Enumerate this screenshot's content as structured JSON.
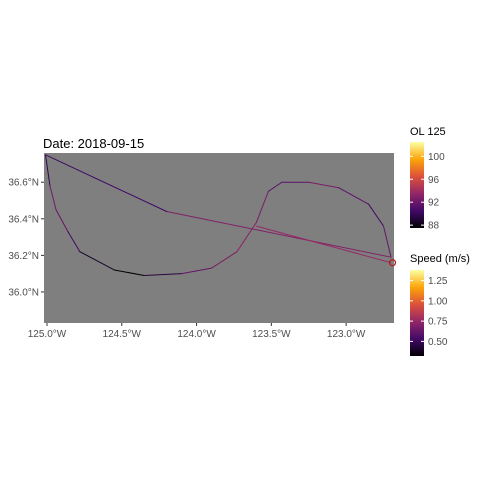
{
  "chart_data": {
    "type": "map-track",
    "title": "Date: 2018-09-15",
    "xlabel": "",
    "ylabel": "",
    "panel_background": "#7f7f7f",
    "lon_range": [
      -125.02,
      -122.68
    ],
    "lat_range": [
      35.83,
      36.76
    ],
    "x_ticks": [
      {
        "value": -125.0,
        "label": "125.0°W"
      },
      {
        "value": -124.5,
        "label": "124.5°W"
      },
      {
        "value": -124.0,
        "label": "124.0°W"
      },
      {
        "value": -123.5,
        "label": "123.5°W"
      },
      {
        "value": -123.0,
        "label": "123.0°W"
      }
    ],
    "y_ticks": [
      {
        "value": 36.0,
        "label": "36.0°N"
      },
      {
        "value": 36.2,
        "label": "36.2°N"
      },
      {
        "value": 36.4,
        "label": "36.4°N"
      },
      {
        "value": 36.6,
        "label": "36.6°N"
      }
    ],
    "track": [
      {
        "lon": -125.01,
        "lat": 36.75,
        "speed": 0.35
      },
      {
        "lon": -124.98,
        "lat": 36.58,
        "speed": 0.6
      },
      {
        "lon": -124.94,
        "lat": 36.45,
        "speed": 0.7
      },
      {
        "lon": -124.86,
        "lat": 36.33,
        "speed": 0.55
      },
      {
        "lon": -124.78,
        "lat": 36.22,
        "speed": 0.5
      },
      {
        "lon": -124.55,
        "lat": 36.12,
        "speed": 0.3
      },
      {
        "lon": -124.35,
        "lat": 36.09,
        "speed": 0.3
      },
      {
        "lon": -124.1,
        "lat": 36.1,
        "speed": 0.6
      },
      {
        "lon": -123.9,
        "lat": 36.13,
        "speed": 0.65
      },
      {
        "lon": -123.73,
        "lat": 36.22,
        "speed": 0.7
      },
      {
        "lon": -123.6,
        "lat": 36.38,
        "speed": 0.75
      },
      {
        "lon": -123.52,
        "lat": 36.55,
        "speed": 0.6
      },
      {
        "lon": -123.43,
        "lat": 36.6,
        "speed": 0.55
      },
      {
        "lon": -123.25,
        "lat": 36.6,
        "speed": 0.65
      },
      {
        "lon": -123.05,
        "lat": 36.57,
        "speed": 0.7
      },
      {
        "lon": -122.85,
        "lat": 36.48,
        "speed": 0.5
      },
      {
        "lon": -122.75,
        "lat": 36.36,
        "speed": 0.55
      },
      {
        "lon": -122.7,
        "lat": 36.19,
        "speed": 0.7
      },
      {
        "lon": -124.2,
        "lat": 36.44,
        "speed": 0.7
      },
      {
        "lon": -125.01,
        "lat": 36.75,
        "speed": 0.35
      }
    ],
    "extra_segments": [
      {
        "from": {
          "lon": -123.6,
          "lat": 36.36
        },
        "to": {
          "lon": -122.7,
          "lat": 36.16
        },
        "speed": 0.75
      }
    ],
    "endpoint_marker": {
      "lon": -122.69,
      "lat": 36.16,
      "color": "#b02020"
    },
    "legends": [
      {
        "title": "OL 125",
        "palette": [
          "#000004",
          "#420a68",
          "#932667",
          "#dd513a",
          "#fca50a",
          "#fcffa4"
        ],
        "range": [
          87.5,
          102.5
        ],
        "ticks": [
          {
            "value": 100,
            "label": "100"
          },
          {
            "value": 96,
            "label": "96"
          },
          {
            "value": 92,
            "label": "92"
          },
          {
            "value": 88,
            "label": "88"
          }
        ]
      },
      {
        "title": "Speed (m/s)",
        "palette": [
          "#000004",
          "#420a68",
          "#932667",
          "#dd513a",
          "#fca50a",
          "#fcffa4"
        ],
        "range": [
          0.32,
          1.38
        ],
        "ticks": [
          {
            "value": 1.25,
            "label": "1.25"
          },
          {
            "value": 1.0,
            "label": "1.00"
          },
          {
            "value": 0.75,
            "label": "0.75"
          },
          {
            "value": 0.5,
            "label": "0.50"
          }
        ]
      }
    ]
  }
}
